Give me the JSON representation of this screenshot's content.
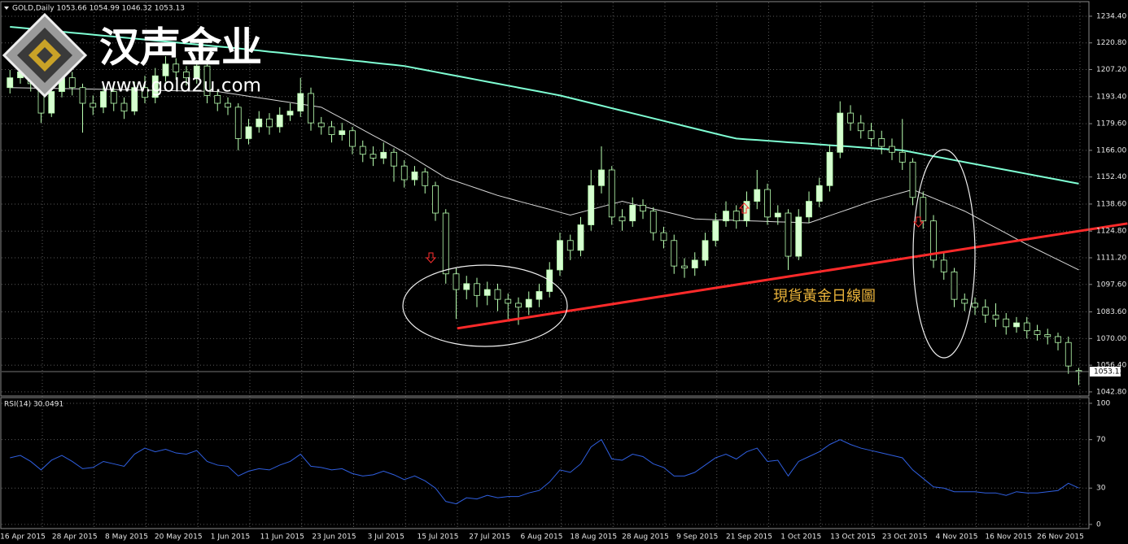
{
  "logo": {
    "name": "汉声金业",
    "url": "www.gold2u.com"
  },
  "chart_data": [
    {
      "type": "candlestick",
      "title": "GOLD,Daily  1053.66 1054.99 1046.32 1053.13",
      "annotation": "現貨黃金日線圖",
      "categories": [
        null,
        "16 Apr 2015",
        null,
        null,
        null,
        null,
        "28 Apr 2015",
        null,
        null,
        null,
        null,
        "8 May 2015",
        null,
        null,
        null,
        null,
        "20 May 2015",
        null,
        null,
        null,
        null,
        "1 Jun 2015",
        null,
        null,
        null,
        null,
        "11 Jun 2015",
        null,
        null,
        null,
        null,
        "23 Jun 2015",
        null,
        null,
        null,
        null,
        "3 Jul 2015",
        null,
        null,
        null,
        null,
        "15 Jul 2015",
        null,
        null,
        null,
        null,
        "27 Jul 2015",
        null,
        null,
        null,
        null,
        "6 Aug 2015",
        null,
        null,
        null,
        null,
        "18 Aug 2015",
        null,
        null,
        null,
        null,
        "28 Aug 2015",
        null,
        null,
        null,
        null,
        "9 Sep 2015",
        null,
        null,
        null,
        null,
        "21 Sep 2015",
        null,
        null,
        null,
        null,
        "1 Oct 2015",
        null,
        null,
        null,
        null,
        "13 Oct 2015",
        null,
        null,
        null,
        null,
        "23 Oct 2015",
        null,
        null,
        null,
        null,
        "4 Nov 2015",
        null,
        null,
        null,
        null,
        "16 Nov 2015",
        null,
        null,
        null,
        null,
        "26 Nov 2015",
        null,
        null
      ],
      "open": [
        1198,
        1203,
        1206,
        1200,
        1185,
        1196,
        1203,
        1198,
        1190,
        1188,
        1196,
        1190,
        1186,
        1198,
        1193,
        1204,
        1210,
        1206,
        1203,
        1209,
        1194,
        1190,
        1188,
        1172,
        1178,
        1182,
        1178,
        1184,
        1186,
        1195,
        1180,
        1178,
        1174,
        1176,
        1168,
        1164,
        1162,
        1165,
        1158,
        1151,
        1155,
        1148,
        1134,
        1103,
        1095,
        1098,
        1092,
        1095,
        1090,
        1088,
        1086,
        1090,
        1094,
        1105,
        1120,
        1115,
        1128,
        1148,
        1156,
        1132,
        1130,
        1138,
        1135,
        1124,
        1120,
        1107,
        1106,
        1110,
        1120,
        1130,
        1135,
        1130,
        1140,
        1146,
        1132,
        1134,
        1112,
        1132,
        1140,
        1148,
        1165,
        1185,
        1180,
        1176,
        1172,
        1168,
        1165,
        1160,
        1142,
        1130,
        1110,
        1104,
        1090,
        1088,
        1086,
        1082,
        1080,
        1076,
        1078,
        1074,
        1072,
        1071,
        1068,
        1053.66
      ],
      "high": [
        1207,
        1210,
        1209,
        1202,
        1199,
        1207,
        1206,
        1200,
        1194,
        1199,
        1198,
        1193,
        1201,
        1204,
        1208,
        1214,
        1213,
        1209,
        1212,
        1211,
        1197,
        1193,
        1190,
        1182,
        1186,
        1185,
        1188,
        1190,
        1203,
        1198,
        1183,
        1181,
        1180,
        1178,
        1171,
        1168,
        1170,
        1167,
        1161,
        1158,
        1157,
        1150,
        1136,
        1106,
        1102,
        1101,
        1099,
        1098,
        1093,
        1091,
        1094,
        1098,
        1109,
        1124,
        1123,
        1132,
        1156,
        1168,
        1158,
        1136,
        1142,
        1141,
        1137,
        1127,
        1123,
        1111,
        1114,
        1124,
        1134,
        1140,
        1138,
        1145,
        1156,
        1149,
        1138,
        1136,
        1136,
        1145,
        1152,
        1169,
        1191,
        1189,
        1184,
        1180,
        1176,
        1172,
        1182,
        1162,
        1145,
        1133,
        1114,
        1106,
        1093,
        1091,
        1090,
        1088,
        1083,
        1081,
        1081,
        1077,
        1075,
        1073,
        1071,
        1054.99
      ],
      "low": [
        1195,
        1200,
        1196,
        1180,
        1183,
        1193,
        1194,
        1175,
        1184,
        1185,
        1186,
        1182,
        1184,
        1190,
        1190,
        1201,
        1202,
        1199,
        1200,
        1190,
        1186,
        1184,
        1166,
        1169,
        1175,
        1174,
        1175,
        1181,
        1183,
        1176,
        1174,
        1170,
        1171,
        1164,
        1160,
        1158,
        1159,
        1150,
        1147,
        1148,
        1144,
        1130,
        1098,
        1080,
        1090,
        1086,
        1087,
        1084,
        1080,
        1077,
        1082,
        1086,
        1091,
        1102,
        1110,
        1112,
        1125,
        1144,
        1128,
        1125,
        1127,
        1131,
        1120,
        1116,
        1103,
        1101,
        1102,
        1107,
        1117,
        1127,
        1126,
        1127,
        1136,
        1128,
        1128,
        1105,
        1110,
        1129,
        1137,
        1145,
        1162,
        1176,
        1172,
        1168,
        1164,
        1161,
        1156,
        1138,
        1126,
        1106,
        1100,
        1086,
        1084,
        1082,
        1078,
        1076,
        1072,
        1073,
        1070,
        1069,
        1067,
        1064,
        1052,
        1046.32
      ],
      "close": [
        1203,
        1206,
        1200,
        1185,
        1196,
        1203,
        1198,
        1190,
        1188,
        1196,
        1190,
        1186,
        1198,
        1193,
        1204,
        1210,
        1206,
        1203,
        1209,
        1194,
        1190,
        1188,
        1172,
        1178,
        1182,
        1178,
        1184,
        1186,
        1195,
        1180,
        1178,
        1174,
        1176,
        1168,
        1164,
        1162,
        1165,
        1158,
        1151,
        1155,
        1148,
        1134,
        1103,
        1095,
        1098,
        1092,
        1095,
        1090,
        1088,
        1086,
        1090,
        1094,
        1105,
        1120,
        1115,
        1128,
        1148,
        1156,
        1132,
        1130,
        1138,
        1135,
        1124,
        1120,
        1107,
        1106,
        1110,
        1120,
        1130,
        1135,
        1130,
        1140,
        1146,
        1132,
        1134,
        1112,
        1132,
        1140,
        1148,
        1165,
        1185,
        1180,
        1176,
        1172,
        1168,
        1165,
        1160,
        1142,
        1130,
        1110,
        1104,
        1090,
        1088,
        1086,
        1082,
        1080,
        1076,
        1078,
        1074,
        1072,
        1071,
        1068,
        1056,
        1053.13
      ],
      "up_color": "#d6ffd0",
      "down_color": "#000000",
      "wick_color": "#b8ffb0",
      "lines": [
        {
          "color": "#7fffd4",
          "values": [
            1229.0,
            1228.5,
            1228.0,
            1227.5,
            1227.0,
            1226.5,
            1226.0,
            1225.5,
            1225.0,
            1224.5,
            1224.0,
            1223.5,
            1223.0,
            1222.5,
            1222.0,
            1221.5,
            1221.0,
            1220.5,
            1220.0,
            1219.5,
            1219.0,
            1218.5,
            1218.0,
            1217.4,
            1216.9,
            1216.3,
            1215.8,
            1215.2,
            1214.6,
            1214.1,
            1213.5,
            1212.9,
            1212.4,
            1211.8,
            1211.3,
            1210.7,
            1210.1,
            1209.6,
            1209.0,
            1208.0,
            1207.0,
            1206.0,
            1205.0,
            1204.0,
            1203.0,
            1202.0,
            1201.0,
            1200.0,
            1199.0,
            1198.0,
            1197.0,
            1196.0,
            1195.0,
            1194.0,
            1192.7,
            1191.4,
            1190.1,
            1188.8,
            1187.5,
            1186.2,
            1184.9,
            1183.6,
            1182.3,
            1181.0,
            1179.7,
            1178.4,
            1177.1,
            1175.8,
            1174.5,
            1173.2,
            1172.0,
            1171.6,
            1171.3,
            1170.9,
            1170.5,
            1170.1,
            1169.8,
            1169.4,
            1169.0,
            1168.6,
            1168.3,
            1167.9,
            1167.5,
            1167.1,
            1166.8,
            1166.4,
            1166.0,
            1165.0,
            1164.0,
            1163.0,
            1162.0,
            1161.0,
            1160.0,
            1159.0,
            1158.0,
            1157.0,
            1156.0,
            1155.0,
            1154.0,
            1153.0,
            1152.0,
            1151.0,
            1150.0,
            1149.0
          ]
        },
        {
          "color": "#d8d8d8",
          "values": [
            1198,
            1197.9,
            1197.8,
            1197.7,
            1197.6,
            1197.5,
            1197.4,
            1197.3,
            1197.2,
            1197.1,
            1197,
            1196.9,
            1196.8,
            1196.7,
            1196.6,
            1196.5,
            1196.4,
            1196.3,
            1196.2,
            1196.1,
            1196,
            1195.2,
            1194.4,
            1193.6,
            1192.8,
            1192,
            1191.2,
            1190.4,
            1189.6,
            1188.8,
            1188,
            1185.1,
            1182.3,
            1179.4,
            1176.5,
            1173.6,
            1170.8,
            1167.9,
            1165,
            1161.8,
            1158.5,
            1155.3,
            1152,
            1150.2,
            1148.4,
            1146.6,
            1144.8,
            1143,
            1141.6,
            1140.1,
            1138.7,
            1137.3,
            1135.9,
            1134.4,
            1133,
            1134.4,
            1135.8,
            1137.2,
            1138.6,
            1140,
            1138.7,
            1137.4,
            1136.1,
            1134.9,
            1133.6,
            1132.3,
            1131,
            1130.8,
            1130.6,
            1130.5,
            1130.3,
            1130.1,
            1129.9,
            1129.7,
            1129.5,
            1129.4,
            1129.2,
            1129,
            1130.8,
            1132.7,
            1134.5,
            1136.3,
            1138.2,
            1140,
            1141.5,
            1143,
            1144.5,
            1146,
            1143.8,
            1141.6,
            1139.4,
            1137.2,
            1135,
            1132.2,
            1129.3,
            1126.5,
            1123.7,
            1120.8,
            1118,
            1115.4,
            1112.8,
            1110.2,
            1107.6,
            1105
          ]
        }
      ],
      "trendline": {
        "color": "#ff2a2a",
        "x": [
          43.1,
          107.7
        ],
        "y": [
          1075.2,
          1128.7
        ]
      },
      "ylim": [
        1040.7,
        1240.6
      ],
      "yticks": [
        {
          "value": 1234.4,
          "label": "1234.40"
        },
        {
          "value": 1220.8,
          "label": "1220.80"
        },
        {
          "value": 1207.2,
          "label": "1207.20"
        },
        {
          "value": 1193.4,
          "label": "1193.40"
        },
        {
          "value": 1179.6,
          "label": "1179.60"
        },
        {
          "value": 1166,
          "label": "1166.00"
        },
        {
          "value": 1152.4,
          "label": "1152.40"
        },
        {
          "value": 1138.6,
          "label": "1138.60"
        },
        {
          "value": 1124.8,
          "label": "1124.80"
        },
        {
          "value": 1111.2,
          "label": "1111.20"
        },
        {
          "value": 1097.6,
          "label": "1097.60"
        },
        {
          "value": 1083.6,
          "label": "1083.60"
        },
        {
          "value": 1070,
          "label": "1070.00"
        },
        {
          "value": 1056.4,
          "label": "1056.40"
        },
        {
          "value": 1042.8,
          "label": "1042.80"
        }
      ],
      "grid": true
    },
    {
      "type": "line",
      "title": "RSI(14) 30.0491",
      "color": "#2f5fe0",
      "values": [
        55,
        57,
        52,
        45,
        53,
        57,
        52,
        46,
        47,
        52,
        50,
        48,
        58,
        63,
        60,
        62,
        59,
        58,
        61,
        52,
        49,
        48,
        40,
        44,
        46,
        45,
        49,
        52,
        58,
        48,
        47,
        45,
        46,
        42,
        40,
        41,
        44,
        41,
        37,
        40,
        36,
        30,
        19,
        17,
        22,
        21,
        24,
        22,
        23,
        23,
        26,
        28,
        35,
        45,
        43,
        50,
        64,
        70,
        54,
        53,
        58,
        56,
        50,
        47,
        40,
        40,
        43,
        49,
        55,
        58,
        54,
        60,
        63,
        52,
        53,
        40,
        52,
        56,
        60,
        66,
        70,
        66,
        63,
        61,
        59,
        57,
        55,
        45,
        38,
        31,
        30,
        27,
        27,
        27,
        26,
        26,
        24,
        27,
        26,
        26,
        27,
        28,
        34,
        30.0491
      ],
      "ylim": [
        -3.4,
        104
      ],
      "yticks": [
        100,
        70,
        30,
        0
      ],
      "grid": true
    }
  ]
}
